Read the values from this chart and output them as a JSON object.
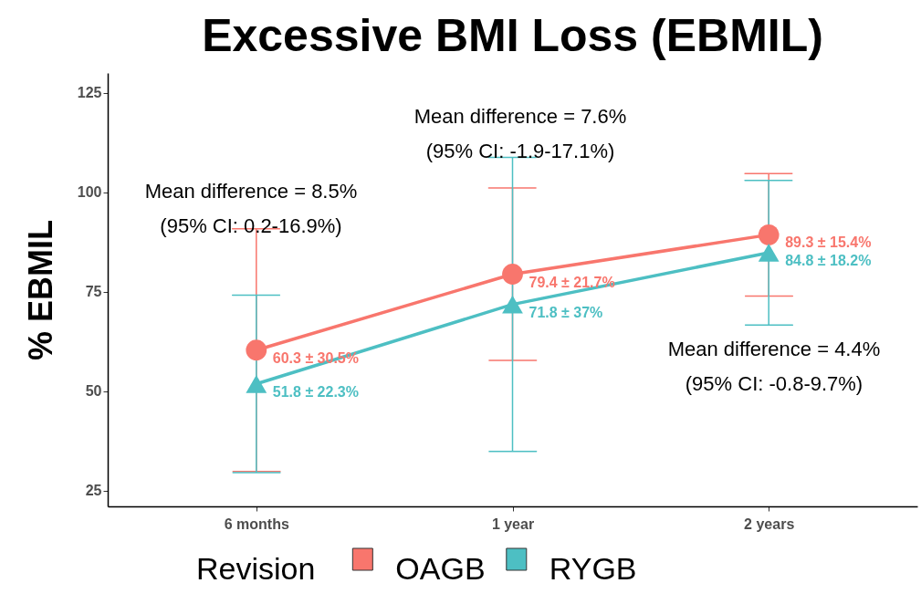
{
  "chart_data": {
    "type": "line",
    "title": "Excessive BMI Loss (EBMIL)",
    "ylabel": "% EBMIL",
    "legend_title": "Revision",
    "legend": "bottom",
    "categories": [
      "6 months",
      "1 year",
      "2 years"
    ],
    "series": [
      {
        "name": "OAGB",
        "color": "#f8766d",
        "marker": "circle",
        "values": [
          60.3,
          79.4,
          89.3
        ],
        "errors": [
          30.5,
          21.7,
          15.4
        ],
        "value_labels": [
          "60.3 ± 30.5%",
          "79.4 ± 21.7%",
          "89.3 ± 15.4%"
        ]
      },
      {
        "name": "RYGB",
        "color": "#4dbfc3",
        "marker": "triangle",
        "values": [
          51.8,
          71.8,
          84.8
        ],
        "errors": [
          22.3,
          37,
          18.2
        ],
        "value_labels": [
          "51.8 ± 22.3%",
          "71.8 ± 37%",
          "84.8 ± 18.2%"
        ]
      }
    ],
    "ylim": [
      21,
      130
    ],
    "yticks": [
      25,
      50,
      75,
      100,
      125
    ],
    "grid": false,
    "line_style": "solid",
    "annotations": [
      "Mean difference = 8.5%\n(95% CI: 0.2-16.9%)",
      "Mean difference = 7.6%\n(95% CI: -1.9-17.1%)",
      "Mean difference = 4.4%\n(95% CI: -0.8-9.7%)"
    ]
  }
}
